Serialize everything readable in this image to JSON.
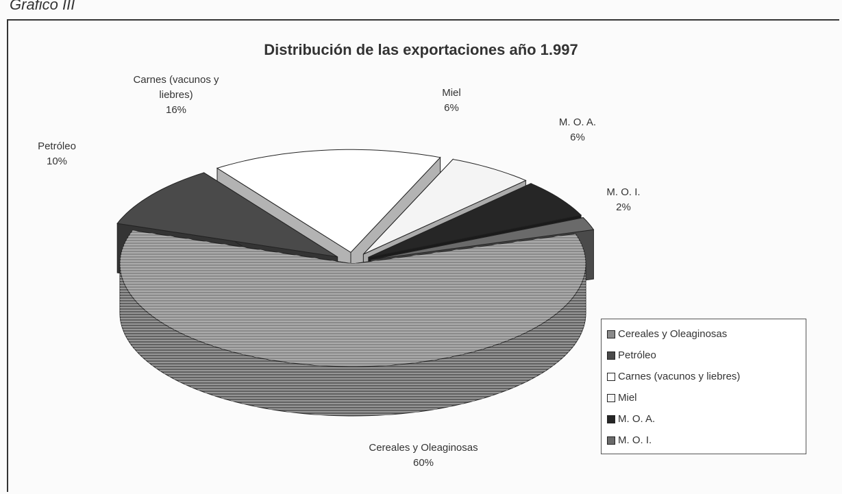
{
  "caption": "Grafico III",
  "chart_data": {
    "type": "pie3d",
    "title": "Distribución de las exportaciones año 1.997",
    "categories": [
      "Cereales y Oleaginosas",
      "Petróleo",
      "Carnes (vacunos y liebres)",
      "Miel",
      "M. O. A.",
      "M. O. I."
    ],
    "values": [
      60,
      10,
      16,
      6,
      6,
      2
    ],
    "value_labels": [
      "60%",
      "10%",
      "16%",
      "6%",
      "6%",
      "2%"
    ],
    "colors": [
      "#8a8a8a",
      "#4a4a4a",
      "#ffffff",
      "#f4f4f4",
      "#262626",
      "#6a6a6a"
    ],
    "legend": "right"
  }
}
